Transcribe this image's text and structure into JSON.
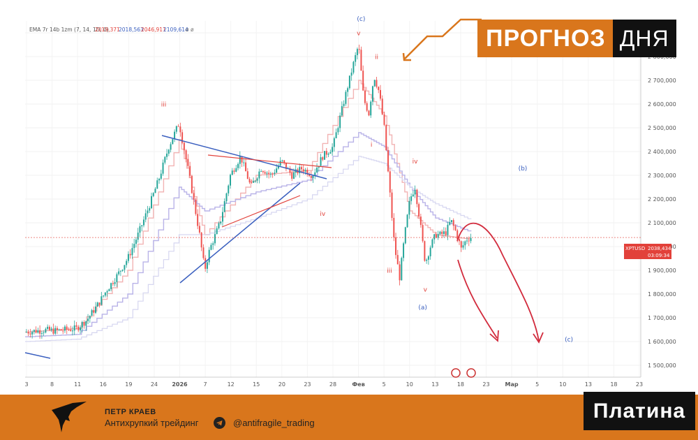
{
  "banner": {
    "word1": "ПРОГНОЗ",
    "word2": "ДНЯ"
  },
  "indicator_legend": {
    "label": "EMA 7r 14b 1zm (7, 14, 1D, 0)",
    "v1": "2019,371",
    "v2": "2018,563",
    "v3": "2046,911",
    "v4": "2109,614",
    "suffix": "ø  ø"
  },
  "price_tag": {
    "symbol": "XPTUSD",
    "price": "2038,434",
    "timer": "03:09:34"
  },
  "footer": {
    "author": "ПЕТР КРАЕВ",
    "tagline": "Антихрупкий трейдинг",
    "handle": "@antifragile_trading",
    "asset": "Платина"
  },
  "colors": {
    "accent": "#d9761c",
    "up": "#26a69a",
    "down": "#ef5350",
    "wave_red": "#e2413a",
    "wave_blue": "#3a5fbf",
    "forecast": "#d22b3d"
  },
  "chart_data": {
    "type": "candlestick",
    "symbol": "XPTUSD",
    "ylim": [
      1450,
      2950
    ],
    "y_ticks": [
      1500,
      1600,
      1700,
      1800,
      1900,
      2000,
      2100,
      2200,
      2300,
      2400,
      2500,
      2600,
      2700,
      2800,
      2900
    ],
    "y_tick_labels": [
      "1 500,000",
      "1 600,000",
      "1 700,000",
      "1 800,000",
      "1 900,000",
      "2 000,000",
      "2 100,000",
      "2 200,000",
      "2 300,000",
      "2 400,000",
      "2 500,000",
      "2 600,000",
      "2 700,000",
      "2 800,000",
      "2 900,000"
    ],
    "x_tick_labels": [
      "3",
      "8",
      "11",
      "16",
      "19",
      "24",
      "2026",
      "7",
      "12",
      "15",
      "20",
      "23",
      "28",
      "Фев",
      "5",
      "10",
      "13",
      "18",
      "23",
      "Мар",
      "5",
      "10",
      "13",
      "18",
      "23"
    ],
    "close_path": [
      [
        0,
        1640
      ],
      [
        4,
        1645
      ],
      [
        8,
        1648
      ],
      [
        12,
        1645
      ],
      [
        16,
        1650
      ],
      [
        20,
        1655
      ],
      [
        24,
        1690
      ],
      [
        28,
        1750
      ],
      [
        32,
        1820
      ],
      [
        36,
        1880
      ],
      [
        40,
        1950
      ],
      [
        44,
        2050
      ],
      [
        48,
        2160
      ],
      [
        52,
        2280
      ],
      [
        56,
        2420
      ],
      [
        60,
        2520
      ],
      [
        64,
        2300
      ],
      [
        68,
        2050
      ],
      [
        70,
        1900
      ],
      [
        72,
        1990
      ],
      [
        76,
        2100
      ],
      [
        80,
        2300
      ],
      [
        84,
        2380
      ],
      [
        88,
        2250
      ],
      [
        92,
        2330
      ],
      [
        96,
        2300
      ],
      [
        100,
        2360
      ],
      [
        104,
        2300
      ],
      [
        108,
        2330
      ],
      [
        112,
        2300
      ],
      [
        116,
        2380
      ],
      [
        120,
        2420
      ],
      [
        124,
        2600
      ],
      [
        128,
        2770
      ],
      [
        130,
        2850
      ],
      [
        132,
        2620
      ],
      [
        134,
        2560
      ],
      [
        136,
        2720
      ],
      [
        138,
        2650
      ],
      [
        140,
        2500
      ],
      [
        142,
        2250
      ],
      [
        144,
        2000
      ],
      [
        146,
        1870
      ],
      [
        148,
        2050
      ],
      [
        150,
        2200
      ],
      [
        152,
        2250
      ],
      [
        154,
        2100
      ],
      [
        156,
        1930
      ],
      [
        158,
        2000
      ],
      [
        160,
        2050
      ],
      [
        162,
        2050
      ],
      [
        164,
        2060
      ],
      [
        166,
        2110
      ],
      [
        168,
        2060
      ],
      [
        170,
        1990
      ],
      [
        172,
        2030
      ],
      [
        174,
        2040
      ]
    ],
    "series": [
      {
        "name": "EMA 7r",
        "values": [
          [
            0,
            1640
          ],
          [
            20,
            1655
          ],
          [
            40,
            1900
          ],
          [
            60,
            2450
          ],
          [
            70,
            2050
          ],
          [
            90,
            2300
          ],
          [
            110,
            2320
          ],
          [
            130,
            2700
          ],
          [
            140,
            2550
          ],
          [
            150,
            2150
          ],
          [
            160,
            2050
          ],
          [
            174,
            2030
          ]
        ]
      },
      {
        "name": "EMA 14b",
        "values": [
          [
            0,
            1620
          ],
          [
            20,
            1630
          ],
          [
            40,
            1800
          ],
          [
            60,
            2250
          ],
          [
            70,
            2150
          ],
          [
            90,
            2230
          ],
          [
            110,
            2280
          ],
          [
            130,
            2480
          ],
          [
            140,
            2420
          ],
          [
            150,
            2250
          ],
          [
            160,
            2120
          ],
          [
            174,
            2060
          ]
        ]
      },
      {
        "name": "1zm",
        "values": [
          [
            0,
            1600
          ],
          [
            20,
            1610
          ],
          [
            40,
            1700
          ],
          [
            60,
            2050
          ],
          [
            70,
            2050
          ],
          [
            90,
            2120
          ],
          [
            110,
            2200
          ],
          [
            130,
            2380
          ],
          [
            140,
            2350
          ],
          [
            150,
            2250
          ],
          [
            160,
            2180
          ],
          [
            174,
            2110
          ]
        ]
      }
    ],
    "wave_labels": [
      {
        "text": "iii",
        "x": 54,
        "y": 2590,
        "series": "primary"
      },
      {
        "text": "(c)",
        "x": 131,
        "y": 2950,
        "series": "higher"
      },
      {
        "text": "v",
        "x": 130,
        "y": 2890,
        "series": "primary"
      },
      {
        "text": "ii",
        "x": 137,
        "y": 2790,
        "series": "primary"
      },
      {
        "text": "i",
        "x": 135,
        "y": 2420,
        "series": "primary"
      },
      {
        "text": "iv",
        "x": 116,
        "y": 2130,
        "series": "primary"
      },
      {
        "text": "iv",
        "x": 152,
        "y": 2350,
        "series": "primary"
      },
      {
        "text": "iii",
        "x": 142,
        "y": 1890,
        "series": "primary"
      },
      {
        "text": "v",
        "x": 156,
        "y": 1810,
        "series": "primary"
      },
      {
        "text": "(a)",
        "x": 155,
        "y": 1735,
        "series": "higher"
      },
      {
        "text": "(b)",
        "x": 194,
        "y": 2320,
        "series": "higher"
      },
      {
        "text": "(c)",
        "x": 212,
        "y": 1600,
        "series": "higher"
      }
    ]
  }
}
